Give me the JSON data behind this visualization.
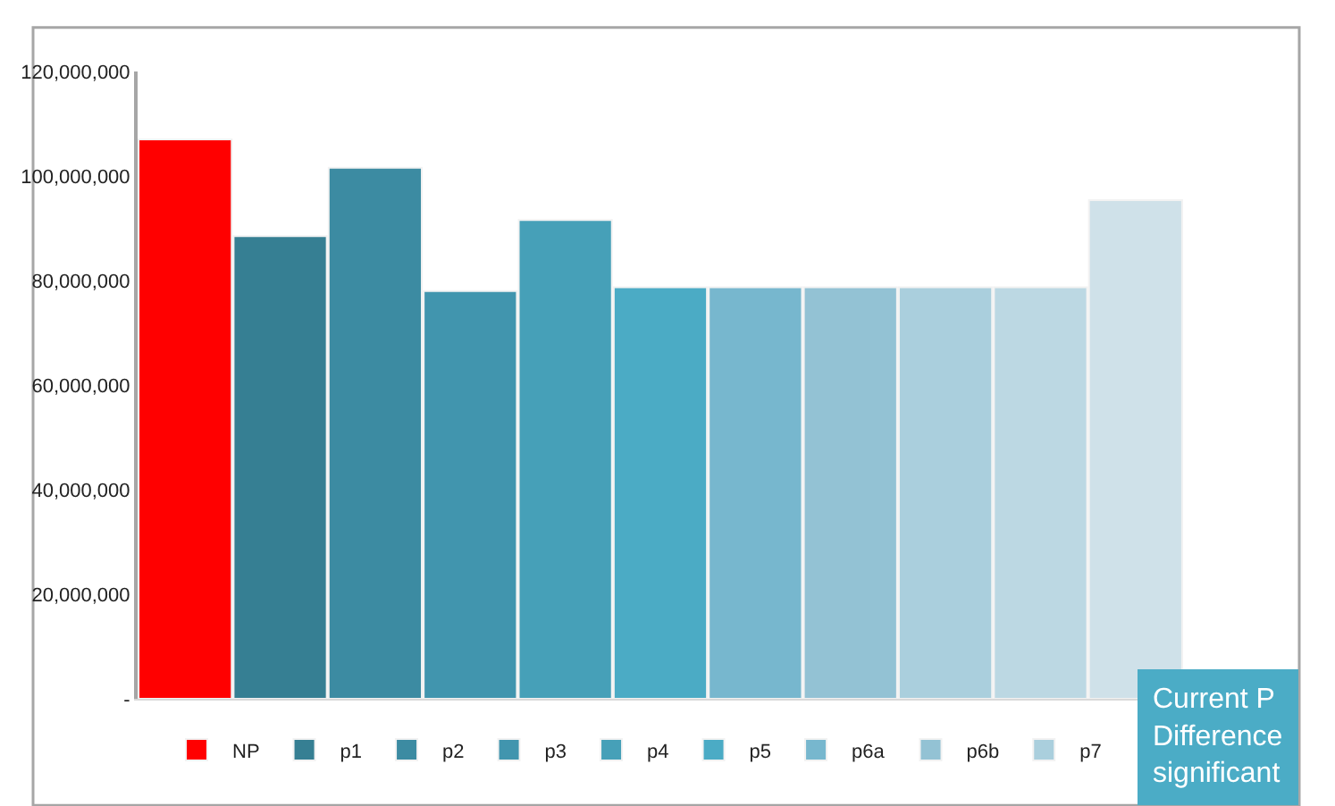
{
  "chart_data": {
    "type": "bar",
    "categories": [
      null,
      null,
      null,
      null,
      null,
      null,
      null,
      null,
      null,
      null,
      null
    ],
    "series": [
      {
        "name": "NP",
        "color": "#ff0000",
        "values": [
          107000000,
          null,
          null,
          null,
          null,
          null,
          null,
          null,
          null,
          null,
          null
        ]
      },
      {
        "name": "p1",
        "color": "#367f93",
        "values": [
          null,
          88500000,
          null,
          null,
          null,
          null,
          null,
          null,
          null,
          null,
          null
        ]
      },
      {
        "name": "p2",
        "color": "#3c8ba2",
        "values": [
          null,
          null,
          101600000,
          null,
          null,
          null,
          null,
          null,
          null,
          null,
          null
        ]
      },
      {
        "name": "p3",
        "color": "#4195ae",
        "values": [
          null,
          null,
          null,
          78000000,
          null,
          null,
          null,
          null,
          null,
          null,
          null
        ]
      },
      {
        "name": "p4",
        "color": "#46a0b8",
        "values": [
          null,
          null,
          null,
          null,
          91600000,
          null,
          null,
          null,
          null,
          null,
          null
        ]
      },
      {
        "name": "p5",
        "color": "#4babc5",
        "values": [
          null,
          null,
          null,
          null,
          null,
          78700000,
          null,
          null,
          null,
          null,
          null
        ]
      },
      {
        "name": "p6a",
        "color": "#77b7ce",
        "values": [
          null,
          null,
          null,
          null,
          null,
          null,
          78700000,
          null,
          null,
          null,
          null
        ]
      },
      {
        "name": "p6b",
        "color": "#93c2d4",
        "values": [
          null,
          null,
          null,
          null,
          null,
          null,
          null,
          78700000,
          null,
          null,
          null
        ]
      },
      {
        "name": "p7",
        "color": "#aacfdd",
        "values": [
          null,
          null,
          null,
          null,
          null,
          null,
          null,
          null,
          78700000,
          null,
          null
        ]
      },
      {
        "color": "#bcd8e3",
        "values": [
          null,
          null,
          null,
          null,
          null,
          null,
          null,
          null,
          null,
          78700000,
          null
        ]
      },
      {
        "color": "#cfe1e9",
        "values": [
          null,
          null,
          null,
          null,
          null,
          null,
          null,
          null,
          null,
          null,
          95400000
        ]
      }
    ],
    "ylim": [
      0,
      120000000
    ],
    "yticks": [
      {
        "value": 0,
        "label": "-"
      },
      {
        "value": 20000000,
        "label": "20,000,000"
      },
      {
        "value": 40000000,
        "label": "40,000,000"
      },
      {
        "value": 60000000,
        "label": "60,000,000"
      },
      {
        "value": 80000000,
        "label": "80,000,000"
      },
      {
        "value": 100000000,
        "label": "100,000,000"
      },
      {
        "value": 120000000,
        "label": "120,000,000"
      }
    ],
    "legend": "bottom",
    "annotations": [
      "Current P\nDifference\nsignificant"
    ]
  }
}
